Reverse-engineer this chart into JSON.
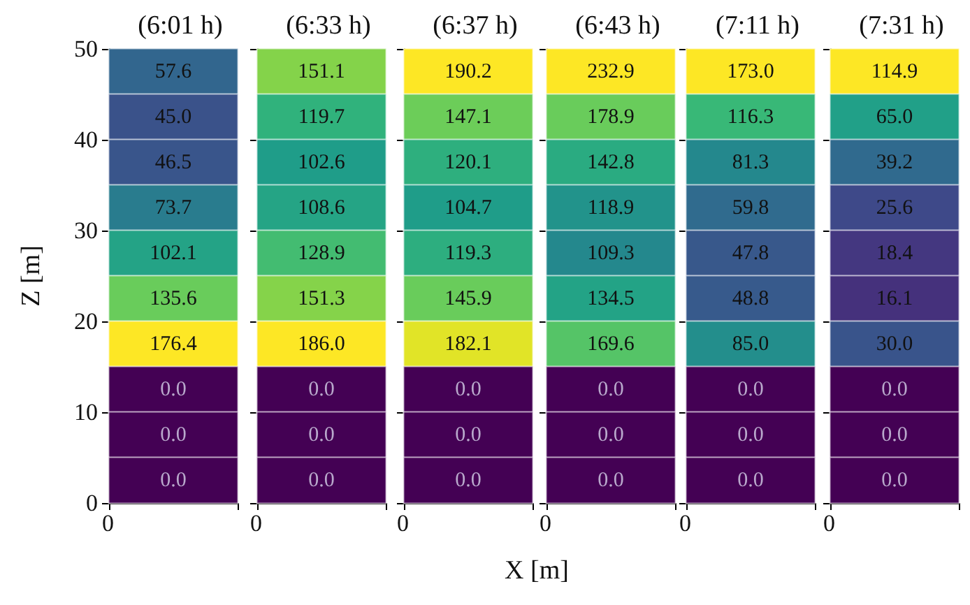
{
  "chart_data": [
    {
      "type": "heatmap",
      "title": "(6:01 h)",
      "ylabel": "Z [m]",
      "categories": [
        null
      ],
      "y_categories": [
        null,
        null,
        null,
        null,
        null,
        null,
        null,
        null,
        null,
        null
      ],
      "annotations": [
        "0",
        "10",
        "20",
        "30",
        "40",
        "50",
        "0"
      ],
      "data_labels": true,
      "cells": [
        [
          57.6
        ],
        [
          45.0
        ],
        [
          46.5
        ],
        [
          73.7
        ],
        [
          102.1
        ],
        [
          135.6
        ],
        [
          176.4
        ],
        [
          0.0
        ],
        [
          0.0
        ],
        [
          0.0
        ]
      ],
      "cell_labels": [
        [
          "57.6"
        ],
        [
          "45.0"
        ],
        [
          "46.5"
        ],
        [
          "73.7"
        ],
        [
          "102.1"
        ],
        [
          "135.6"
        ],
        [
          "176.4"
        ],
        [
          "0.0"
        ],
        [
          "0.0"
        ],
        [
          "0.0"
        ]
      ]
    },
    {
      "type": "heatmap",
      "title": "(6:33 h)",
      "categories": [
        null
      ],
      "y_categories": [
        null,
        null,
        null,
        null,
        null,
        null,
        null,
        null,
        null,
        null
      ],
      "annotations": [
        "0"
      ],
      "data_labels": true,
      "cells": [
        [
          151.1
        ],
        [
          119.7
        ],
        [
          102.6
        ],
        [
          108.6
        ],
        [
          128.9
        ],
        [
          151.3
        ],
        [
          186.0
        ],
        [
          0.0
        ],
        [
          0.0
        ],
        [
          0.0
        ]
      ],
      "cell_labels": [
        [
          "151.1"
        ],
        [
          "119.7"
        ],
        [
          "102.6"
        ],
        [
          "108.6"
        ],
        [
          "128.9"
        ],
        [
          "151.3"
        ],
        [
          "186.0"
        ],
        [
          "0.0"
        ],
        [
          "0.0"
        ],
        [
          "0.0"
        ]
      ]
    },
    {
      "type": "heatmap",
      "title": "(6:37 h)",
      "xlabel": "X [m]",
      "categories": [
        null
      ],
      "y_categories": [
        null,
        null,
        null,
        null,
        null,
        null,
        null,
        null,
        null,
        null
      ],
      "annotations": [
        "0"
      ],
      "data_labels": true,
      "cells": [
        [
          190.2
        ],
        [
          147.1
        ],
        [
          120.1
        ],
        [
          104.7
        ],
        [
          119.3
        ],
        [
          145.9
        ],
        [
          182.1
        ],
        [
          0.0
        ],
        [
          0.0
        ],
        [
          0.0
        ]
      ],
      "cell_labels": [
        [
          "190.2"
        ],
        [
          "147.1"
        ],
        [
          "120.1"
        ],
        [
          "104.7"
        ],
        [
          "119.3"
        ],
        [
          "145.9"
        ],
        [
          "182.1"
        ],
        [
          "0.0"
        ],
        [
          "0.0"
        ],
        [
          "0.0"
        ]
      ]
    },
    {
      "type": "heatmap",
      "title": "(6:43 h)",
      "categories": [
        null
      ],
      "y_categories": [
        null,
        null,
        null,
        null,
        null,
        null,
        null,
        null,
        null,
        null
      ],
      "annotations": [
        "0"
      ],
      "data_labels": true,
      "cells": [
        [
          232.9
        ],
        [
          178.9
        ],
        [
          142.8
        ],
        [
          118.9
        ],
        [
          109.3
        ],
        [
          134.5
        ],
        [
          169.6
        ],
        [
          0.0
        ],
        [
          0.0
        ],
        [
          0.0
        ]
      ],
      "cell_labels": [
        [
          "232.9"
        ],
        [
          "178.9"
        ],
        [
          "142.8"
        ],
        [
          "118.9"
        ],
        [
          "109.3"
        ],
        [
          "134.5"
        ],
        [
          "169.6"
        ],
        [
          "0.0"
        ],
        [
          "0.0"
        ],
        [
          "0.0"
        ]
      ]
    },
    {
      "type": "heatmap",
      "title": "(7:11 h)",
      "categories": [
        null
      ],
      "y_categories": [
        null,
        null,
        null,
        null,
        null,
        null,
        null,
        null,
        null,
        null
      ],
      "annotations": [
        "0"
      ],
      "data_labels": true,
      "cells": [
        [
          173.0
        ],
        [
          116.3
        ],
        [
          81.3
        ],
        [
          59.8
        ],
        [
          47.8
        ],
        [
          48.8
        ],
        [
          85.0
        ],
        [
          0.0
        ],
        [
          0.0
        ],
        [
          0.0
        ]
      ],
      "cell_labels": [
        [
          "173.0"
        ],
        [
          "116.3"
        ],
        [
          "81.3"
        ],
        [
          "59.8"
        ],
        [
          "47.8"
        ],
        [
          "48.8"
        ],
        [
          "85.0"
        ],
        [
          "0.0"
        ],
        [
          "0.0"
        ],
        [
          "0.0"
        ]
      ]
    },
    {
      "type": "heatmap",
      "title": "(7:31 h)",
      "categories": [
        null
      ],
      "y_categories": [
        null,
        null,
        null,
        null,
        null,
        null,
        null,
        null,
        null,
        null
      ],
      "annotations": [
        "0"
      ],
      "data_labels": true,
      "cells": [
        [
          114.9
        ],
        [
          65.0
        ],
        [
          39.2
        ],
        [
          25.6
        ],
        [
          18.4
        ],
        [
          16.1
        ],
        [
          30.0
        ],
        [
          0.0
        ],
        [
          0.0
        ],
        [
          0.0
        ]
      ],
      "cell_labels": [
        [
          "114.9"
        ],
        [
          "65.0"
        ],
        [
          "39.2"
        ],
        [
          "25.6"
        ],
        [
          "18.4"
        ],
        [
          "16.1"
        ],
        [
          "30.0"
        ],
        [
          "0.0"
        ],
        [
          "0.0"
        ],
        [
          "0.0"
        ]
      ]
    }
  ]
}
